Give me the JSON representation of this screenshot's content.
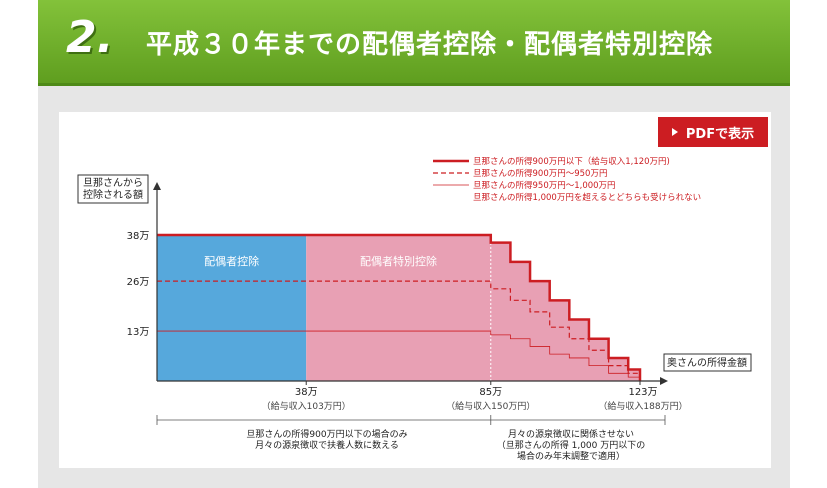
{
  "header": {
    "number": "2.",
    "title": "平成３０年までの配偶者控除・配偶者特別控除"
  },
  "pdf_button": {
    "label": "PDFで表示"
  },
  "chart_data": {
    "type": "line",
    "ylabel": [
      "旦那さんから",
      "控除される額"
    ],
    "xlabel": "奥さんの所得金額",
    "y_ticks": [
      "38万",
      "26万",
      "13万"
    ],
    "x_ticks": [
      {
        "label": "38万",
        "sub": "（給与収入103万円）",
        "x": 38
      },
      {
        "label": "85万",
        "sub": "（給与収入150万円）",
        "x": 85
      },
      {
        "label": "123万",
        "sub": "（給与収入188万円）",
        "x": 123
      }
    ],
    "xlim": [
      0,
      130
    ],
    "ylim": [
      0,
      44
    ],
    "regions": [
      {
        "name": "配偶者控除",
        "x_from": 0,
        "x_to": 38,
        "y": 38,
        "color": "#56a8dc"
      },
      {
        "name": "配偶者特別控除",
        "x_from": 38,
        "x_to": 123,
        "y": 38,
        "color": "#e8a0b4"
      }
    ],
    "legend": [
      "旦那さんの所得900万円以下（給与収入1,120万円)",
      "旦那さんの所得900万円～950万円",
      "旦那さんの所得950万円～1,000万円",
      "旦那さんの所得1,000万円を超えるとどちらも受けられない"
    ],
    "series": [
      {
        "name": "旦那さんの所得900万円以下（給与収入1,120万円)",
        "style": "solid-thick",
        "color": "#cc1d22",
        "points": [
          [
            0,
            38
          ],
          [
            85,
            38
          ],
          [
            85,
            36
          ],
          [
            90,
            36
          ],
          [
            90,
            31
          ],
          [
            95,
            31
          ],
          [
            95,
            26
          ],
          [
            100,
            26
          ],
          [
            100,
            21
          ],
          [
            105,
            21
          ],
          [
            105,
            16
          ],
          [
            110,
            16
          ],
          [
            110,
            11
          ],
          [
            115,
            11
          ],
          [
            115,
            6
          ],
          [
            120,
            6
          ],
          [
            120,
            3
          ],
          [
            123,
            3
          ],
          [
            123,
            0
          ]
        ]
      },
      {
        "name": "旦那さんの所得900万円～950万円",
        "style": "dashed",
        "color": "#cc1d22",
        "points": [
          [
            0,
            26
          ],
          [
            85,
            26
          ],
          [
            85,
            24
          ],
          [
            90,
            24
          ],
          [
            90,
            21
          ],
          [
            95,
            21
          ],
          [
            95,
            18
          ],
          [
            100,
            18
          ],
          [
            100,
            14
          ],
          [
            105,
            14
          ],
          [
            105,
            11
          ],
          [
            110,
            11
          ],
          [
            110,
            8
          ],
          [
            115,
            8
          ],
          [
            115,
            4
          ],
          [
            120,
            4
          ],
          [
            120,
            2
          ],
          [
            123,
            2
          ],
          [
            123,
            0
          ]
        ]
      },
      {
        "name": "旦那さんの所得950万円～1,000万円",
        "style": "solid-thin",
        "color": "#cc1d22",
        "points": [
          [
            0,
            13
          ],
          [
            85,
            13
          ],
          [
            85,
            12
          ],
          [
            90,
            12
          ],
          [
            90,
            11
          ],
          [
            95,
            11
          ],
          [
            95,
            9
          ],
          [
            100,
            9
          ],
          [
            100,
            7
          ],
          [
            105,
            7
          ],
          [
            105,
            6
          ],
          [
            110,
            6
          ],
          [
            110,
            4
          ],
          [
            115,
            4
          ],
          [
            115,
            2
          ],
          [
            120,
            2
          ],
          [
            120,
            1
          ],
          [
            123,
            1
          ],
          [
            123,
            0
          ]
        ]
      }
    ]
  },
  "notes": {
    "left": [
      "旦那さんの所得900万円以下の場合のみ",
      "月々の源泉徴収で扶養人数に数える"
    ],
    "right": [
      "月々の源泉徴収に関係させない",
      "（旦那さんの所得 1,000 万円以下の",
      "場合のみ年末調整で適用）"
    ]
  }
}
